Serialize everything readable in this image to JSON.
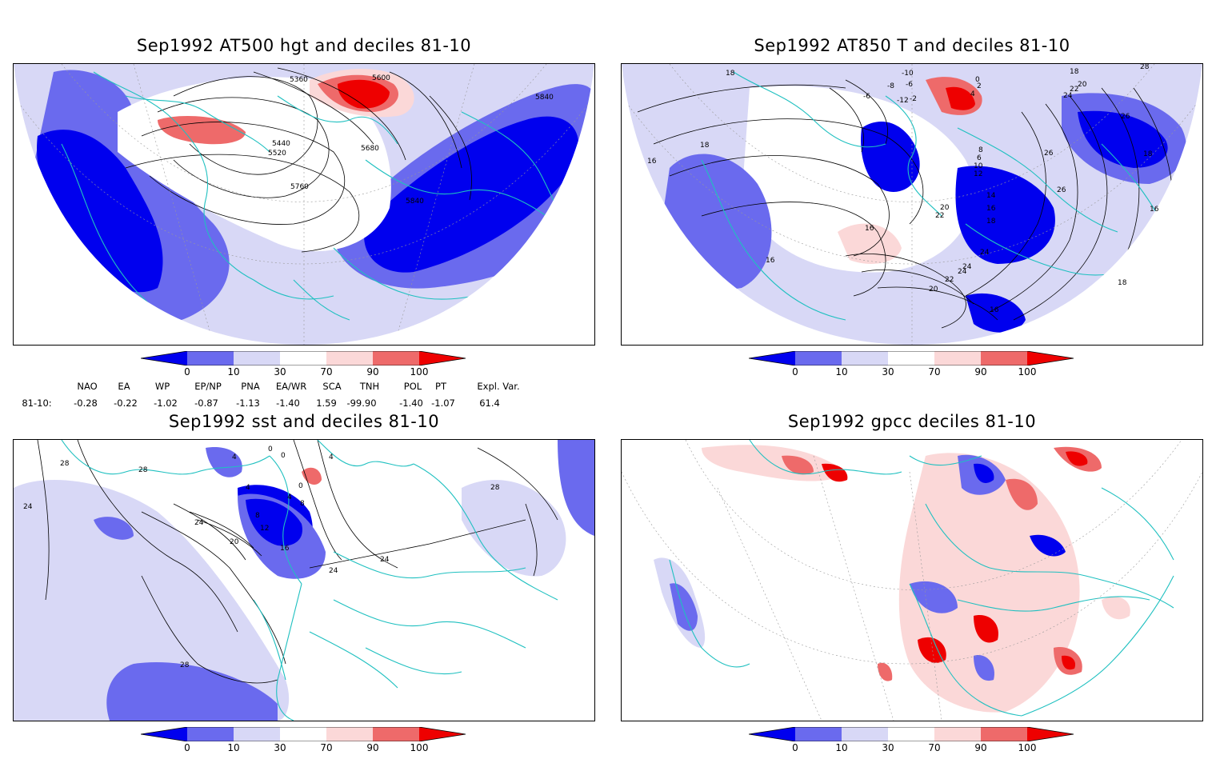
{
  "panels": [
    {
      "title": "Sep1992 AT500 hgt and deciles 81-10",
      "contour_labels": [
        "5360",
        "5600",
        "5440",
        "5520",
        "5680",
        "5760",
        "5840",
        "5840"
      ]
    },
    {
      "title": "Sep1992 AT850 T and deciles 81-10",
      "contour_labels": [
        "18",
        "-6",
        "-6",
        "-12",
        "-8",
        "-10",
        "-2",
        "0",
        "2",
        "4",
        "20",
        "22",
        "24",
        "18",
        "16",
        "16",
        "18",
        "26",
        "26",
        "16",
        "14",
        "16",
        "18",
        "20",
        "22",
        "24",
        "24",
        "16",
        "18",
        "16",
        "18",
        "20",
        "22",
        "24",
        "26",
        "28",
        "8",
        "6",
        "10",
        "12"
      ]
    },
    {
      "title": "Sep1992 sst and deciles 81-10",
      "contour_labels": [
        "28",
        "24",
        "28",
        "0",
        "0",
        "4",
        "4",
        "4",
        "8",
        "12",
        "16",
        "20",
        "24",
        "28",
        "24",
        "24",
        "28",
        "0",
        "4",
        "8"
      ]
    },
    {
      "title": "Sep1992 gpcc deciles 81-10",
      "contour_labels": []
    }
  ],
  "colorbar": {
    "ticks": [
      "0",
      "10",
      "30",
      "70",
      "90",
      "100"
    ],
    "colors": [
      "#0000ee",
      "#6a6aee",
      "#d8d8f6",
      "#ffffff",
      "#fbd8d8",
      "#ee6a6a",
      "#ee0000"
    ]
  },
  "teleconnection_indices": {
    "headers": [
      "NAO",
      "EA",
      "WP",
      "EP/NP",
      "PNA",
      "EA/WR",
      "SCA",
      "TNH",
      "POL",
      "PT",
      "Expl. Var."
    ],
    "row_label": "81-10:",
    "values": [
      "-0.28",
      "-0.22",
      "-1.02",
      "-0.87",
      "-1.13",
      "-1.40",
      "1.59",
      "-99.90",
      "-1.40",
      "-1.07",
      "61.4"
    ]
  },
  "colors": {
    "land_outline": "#1fc0c0",
    "contour": "#000000",
    "strong_low": "#0000ee",
    "mod_low": "#6a6aee",
    "light_low": "#d8d8f6",
    "light_high": "#fbd8d8",
    "mod_high": "#ee6a6a",
    "strong_high": "#ee0000"
  }
}
